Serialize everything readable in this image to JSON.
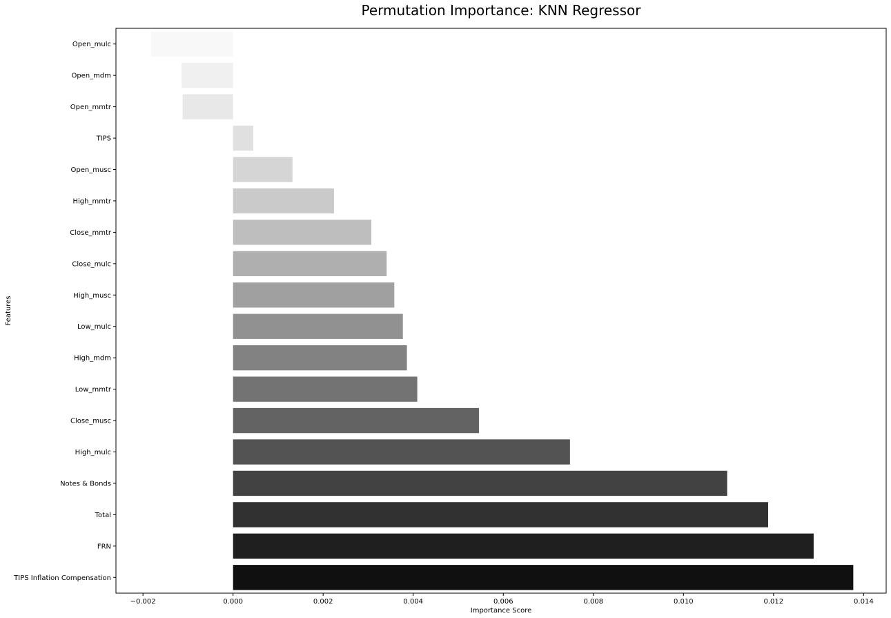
{
  "chart_data": {
    "type": "bar",
    "orientation": "horizontal",
    "title": "Permutation Importance: KNN Regressor",
    "xlabel": "Importance Score",
    "ylabel": "Features",
    "xlim": [
      -0.0026,
      0.0145
    ],
    "xticks": [
      -0.002,
      0.0,
      0.002,
      0.004,
      0.006,
      0.008,
      0.01,
      0.012,
      0.014
    ],
    "xtick_labels": [
      "−0.002",
      "0.000",
      "0.002",
      "0.004",
      "0.006",
      "0.008",
      "0.010",
      "0.012",
      "0.014"
    ],
    "grid": false,
    "categories": [
      "Open_mulc",
      "Open_mdm",
      "Open_mmtr",
      "TIPS",
      "Open_musc",
      "High_mmtr",
      "Close_mmtr",
      "Close_mulc",
      "High_musc",
      "Low_mulc",
      "High_mdm",
      "Low_mmtr",
      "Close_musc",
      "High_mulc",
      "Notes & Bonds",
      "Total",
      "FRN",
      "TIPS Inflation Compensation"
    ],
    "values": [
      -0.00182,
      -0.00114,
      -0.00112,
      0.00045,
      0.00132,
      0.00224,
      0.00307,
      0.00341,
      0.00358,
      0.00377,
      0.00386,
      0.00409,
      0.00546,
      0.00748,
      0.01097,
      0.01188,
      0.01289,
      0.01377
    ],
    "colors": [
      "#f8f8f8",
      "#f0f0f0",
      "#e8e8e8",
      "#e0e0e0",
      "#d5d5d5",
      "#cacaca",
      "#bebebe",
      "#afafaf",
      "#a0a0a0",
      "#919191",
      "#828282",
      "#737373",
      "#636363",
      "#535353",
      "#424242",
      "#313131",
      "#1f1f1f",
      "#101010"
    ]
  }
}
